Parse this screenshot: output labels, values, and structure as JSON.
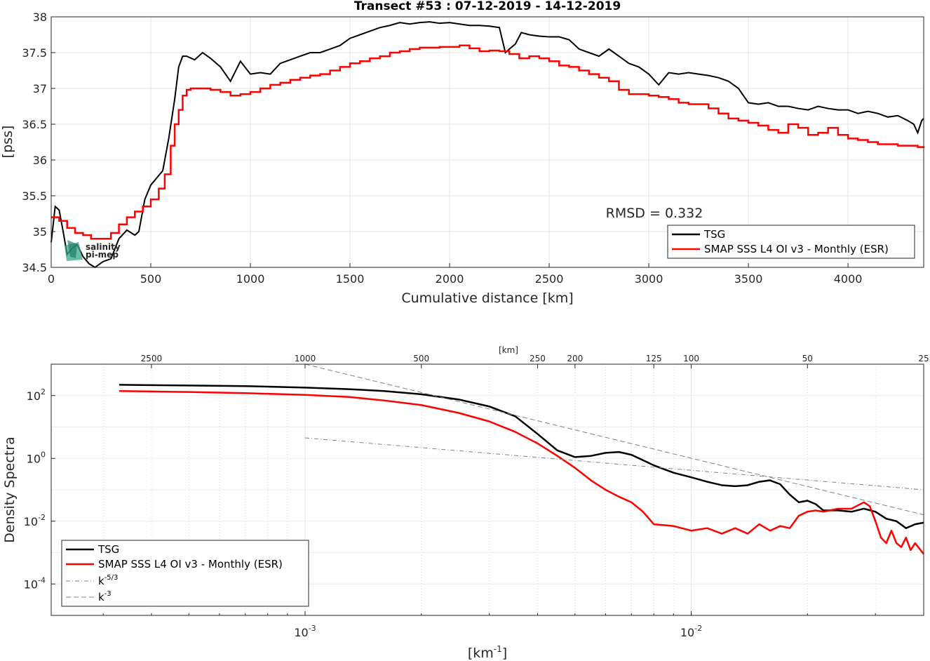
{
  "chart_data": [
    {
      "type": "line",
      "title": "Transect #53 : 07-12-2019 - 14-12-2019",
      "xlabel": "Cumulative distance [km]",
      "ylabel": "[pss]",
      "xlim": [
        0,
        4380
      ],
      "ylim": [
        34.5,
        38
      ],
      "xticks": [
        0,
        500,
        1000,
        1500,
        2000,
        2500,
        3000,
        3500,
        4000
      ],
      "yticks": [
        34.5,
        35,
        35.5,
        36,
        36.5,
        37,
        37.5,
        38
      ],
      "grid": true,
      "legend_position": "bottom-right",
      "annotation": "RMSD = 0.332",
      "logo_text": [
        "salinity",
        "pi-mep"
      ],
      "series": [
        {
          "name": "TSG",
          "color": "#000000",
          "x": [
            0,
            20,
            40,
            60,
            80,
            100,
            130,
            160,
            190,
            220,
            260,
            300,
            340,
            380,
            420,
            440,
            470,
            500,
            530,
            560,
            590,
            620,
            640,
            660,
            680,
            720,
            760,
            800,
            850,
            900,
            950,
            1000,
            1050,
            1100,
            1150,
            1200,
            1250,
            1300,
            1350,
            1400,
            1450,
            1500,
            1550,
            1600,
            1650,
            1700,
            1750,
            1800,
            1850,
            1900,
            1950,
            2000,
            2050,
            2100,
            2150,
            2200,
            2250,
            2280,
            2300,
            2330,
            2360,
            2400,
            2450,
            2500,
            2550,
            2600,
            2650,
            2700,
            2750,
            2800,
            2850,
            2900,
            2950,
            3000,
            3050,
            3100,
            3150,
            3200,
            3250,
            3300,
            3350,
            3400,
            3450,
            3500,
            3550,
            3600,
            3650,
            3700,
            3750,
            3800,
            3850,
            3900,
            3950,
            4000,
            4050,
            4100,
            4150,
            4200,
            4250,
            4300,
            4330,
            4350,
            4370,
            4380
          ],
          "y": [
            34.85,
            35.35,
            35.3,
            35.0,
            34.68,
            34.75,
            34.82,
            34.65,
            34.55,
            34.5,
            34.58,
            34.62,
            34.9,
            35.02,
            34.95,
            35.0,
            35.45,
            35.65,
            35.75,
            35.85,
            36.3,
            36.85,
            37.3,
            37.45,
            37.45,
            37.4,
            37.5,
            37.42,
            37.3,
            37.1,
            37.38,
            37.2,
            37.22,
            37.2,
            37.35,
            37.4,
            37.45,
            37.5,
            37.5,
            37.55,
            37.6,
            37.7,
            37.75,
            37.8,
            37.85,
            37.88,
            37.92,
            37.9,
            37.92,
            37.93,
            37.91,
            37.92,
            37.9,
            37.88,
            37.88,
            37.87,
            37.85,
            37.5,
            37.55,
            37.62,
            37.78,
            37.75,
            37.73,
            37.72,
            37.72,
            37.68,
            37.55,
            37.5,
            37.45,
            37.55,
            37.45,
            37.35,
            37.3,
            37.2,
            37.05,
            37.22,
            37.2,
            37.22,
            37.2,
            37.18,
            37.15,
            37.1,
            37.0,
            36.8,
            36.78,
            36.8,
            36.75,
            36.75,
            36.72,
            36.7,
            36.75,
            36.72,
            36.7,
            36.7,
            36.65,
            36.68,
            36.65,
            36.6,
            36.62,
            36.55,
            36.5,
            36.38,
            36.55,
            36.58
          ]
        },
        {
          "name": "SMAP SSS L4 OI v3 - Monthly (ESR)",
          "color": "#ff0000",
          "step": true,
          "x": [
            0,
            40,
            80,
            120,
            160,
            200,
            250,
            300,
            340,
            380,
            420,
            460,
            500,
            540,
            570,
            600,
            620,
            640,
            660,
            680,
            700,
            750,
            800,
            850,
            900,
            950,
            1000,
            1050,
            1100,
            1150,
            1200,
            1250,
            1300,
            1350,
            1400,
            1450,
            1500,
            1550,
            1600,
            1650,
            1700,
            1750,
            1800,
            1850,
            1900,
            1950,
            2000,
            2050,
            2100,
            2150,
            2200,
            2250,
            2300,
            2350,
            2400,
            2450,
            2500,
            2550,
            2600,
            2650,
            2700,
            2750,
            2800,
            2850,
            2900,
            2950,
            3000,
            3050,
            3100,
            3150,
            3200,
            3250,
            3300,
            3350,
            3400,
            3450,
            3500,
            3550,
            3600,
            3650,
            3700,
            3750,
            3800,
            3850,
            3900,
            3950,
            4000,
            4050,
            4100,
            4150,
            4200,
            4250,
            4300,
            4350,
            4380
          ],
          "y": [
            35.2,
            35.15,
            35.05,
            34.98,
            34.95,
            34.9,
            34.9,
            34.98,
            35.1,
            35.2,
            35.28,
            35.35,
            35.45,
            35.6,
            35.8,
            36.2,
            36.5,
            36.7,
            36.9,
            36.98,
            37.0,
            37.0,
            36.98,
            36.95,
            36.9,
            36.92,
            36.95,
            37.0,
            37.05,
            37.08,
            37.12,
            37.15,
            37.18,
            37.2,
            37.25,
            37.3,
            37.35,
            37.38,
            37.42,
            37.45,
            37.5,
            37.52,
            37.55,
            37.57,
            37.57,
            37.58,
            37.58,
            37.6,
            37.56,
            37.52,
            37.53,
            37.52,
            37.48,
            37.42,
            37.45,
            37.42,
            37.38,
            37.32,
            37.3,
            37.25,
            37.2,
            37.15,
            37.1,
            36.98,
            36.92,
            36.92,
            36.9,
            36.88,
            36.85,
            36.8,
            36.78,
            36.78,
            36.72,
            36.65,
            36.58,
            36.55,
            36.52,
            36.48,
            36.42,
            36.38,
            36.5,
            36.45,
            36.35,
            36.38,
            36.45,
            36.35,
            36.3,
            36.28,
            36.25,
            36.22,
            36.22,
            36.2,
            36.2,
            36.18,
            36.17
          ]
        }
      ]
    },
    {
      "type": "line",
      "xlabel": "[km⁻¹]",
      "ylabel": "Density Spectra",
      "x_scale": "log",
      "y_scale": "log",
      "xlim": [
        0.00022,
        0.04
      ],
      "ylim": [
        1e-05,
        1000
      ],
      "xticks": [
        0.001,
        0.01
      ],
      "xtick_labels": [
        "10",
        "10"
      ],
      "xtick_exponents": [
        "-3",
        "-2"
      ],
      "yticks": [
        0.0001,
        0.01,
        1,
        100
      ],
      "ytick_labels": [
        "10",
        "10",
        "10",
        "10"
      ],
      "ytick_exponents": [
        "-4",
        "-2",
        "0",
        "2"
      ],
      "top_axis_label": "[km]",
      "top_ticks": [
        2500,
        1000,
        500,
        250,
        200,
        125,
        100,
        50,
        25
      ],
      "top_tick_labels": [
        "2500",
        "1000",
        "500",
        "250",
        "200",
        "125",
        "100",
        "50",
        "25"
      ],
      "grid": true,
      "legend_position": "bottom-left",
      "series": [
        {
          "name": "TSG",
          "color": "#000000",
          "x": [
            0.00033,
            0.0004,
            0.0005,
            0.0007,
            0.001,
            0.0013,
            0.0016,
            0.002,
            0.0025,
            0.003,
            0.0035,
            0.004,
            0.0045,
            0.005,
            0.0055,
            0.006,
            0.0065,
            0.007,
            0.008,
            0.009,
            0.01,
            0.011,
            0.012,
            0.013,
            0.014,
            0.015,
            0.016,
            0.017,
            0.018,
            0.019,
            0.02,
            0.021,
            0.022,
            0.024,
            0.026,
            0.028,
            0.03,
            0.032,
            0.034,
            0.036,
            0.038,
            0.04
          ],
          "y": [
            220,
            215,
            210,
            200,
            180,
            160,
            140,
            110,
            75,
            45,
            22,
            6,
            1.8,
            1.1,
            1.2,
            1.5,
            1.6,
            1.3,
            0.6,
            0.35,
            0.25,
            0.18,
            0.14,
            0.13,
            0.14,
            0.18,
            0.2,
            0.15,
            0.07,
            0.04,
            0.045,
            0.035,
            0.022,
            0.022,
            0.02,
            0.025,
            0.02,
            0.012,
            0.01,
            0.006,
            0.008,
            0.009
          ]
        },
        {
          "name": "SMAP SSS L4 OI v3 - Monthly (ESR)",
          "color": "#ff0000",
          "x": [
            0.00033,
            0.0004,
            0.0005,
            0.0007,
            0.001,
            0.0013,
            0.0016,
            0.002,
            0.0025,
            0.003,
            0.0035,
            0.004,
            0.0045,
            0.005,
            0.0055,
            0.006,
            0.0065,
            0.007,
            0.0075,
            0.008,
            0.009,
            0.01,
            0.011,
            0.012,
            0.013,
            0.014,
            0.015,
            0.016,
            0.017,
            0.018,
            0.019,
            0.02,
            0.021,
            0.022,
            0.024,
            0.026,
            0.028,
            0.029,
            0.03,
            0.031,
            0.032,
            0.033,
            0.034,
            0.035,
            0.036,
            0.037,
            0.038,
            0.04
          ],
          "y": [
            140,
            135,
            130,
            120,
            105,
            90,
            70,
            50,
            28,
            15,
            7,
            3,
            1.2,
            0.5,
            0.2,
            0.1,
            0.06,
            0.04,
            0.02,
            0.008,
            0.007,
            0.005,
            0.006,
            0.004,
            0.006,
            0.004,
            0.008,
            0.005,
            0.007,
            0.006,
            0.015,
            0.02,
            0.022,
            0.02,
            0.025,
            0.025,
            0.04,
            0.03,
            0.01,
            0.003,
            0.002,
            0.005,
            0.002,
            0.0015,
            0.003,
            0.0012,
            0.002,
            0.0009
          ]
        },
        {
          "name": "k⁻⁵ᐟ³",
          "label_base": "k",
          "label_exponent": "-5/3",
          "color": "#808080",
          "dash": "dashdot",
          "x": [
            0.001,
            0.04
          ],
          "y": [
            4.5,
            0.1
          ]
        },
        {
          "name": "k⁻³",
          "label_base": "k",
          "label_exponent": "-3",
          "color": "#808080",
          "dash": "dashed",
          "x": [
            0.001,
            0.04
          ],
          "y": [
            1000,
            0.016
          ]
        }
      ]
    }
  ]
}
